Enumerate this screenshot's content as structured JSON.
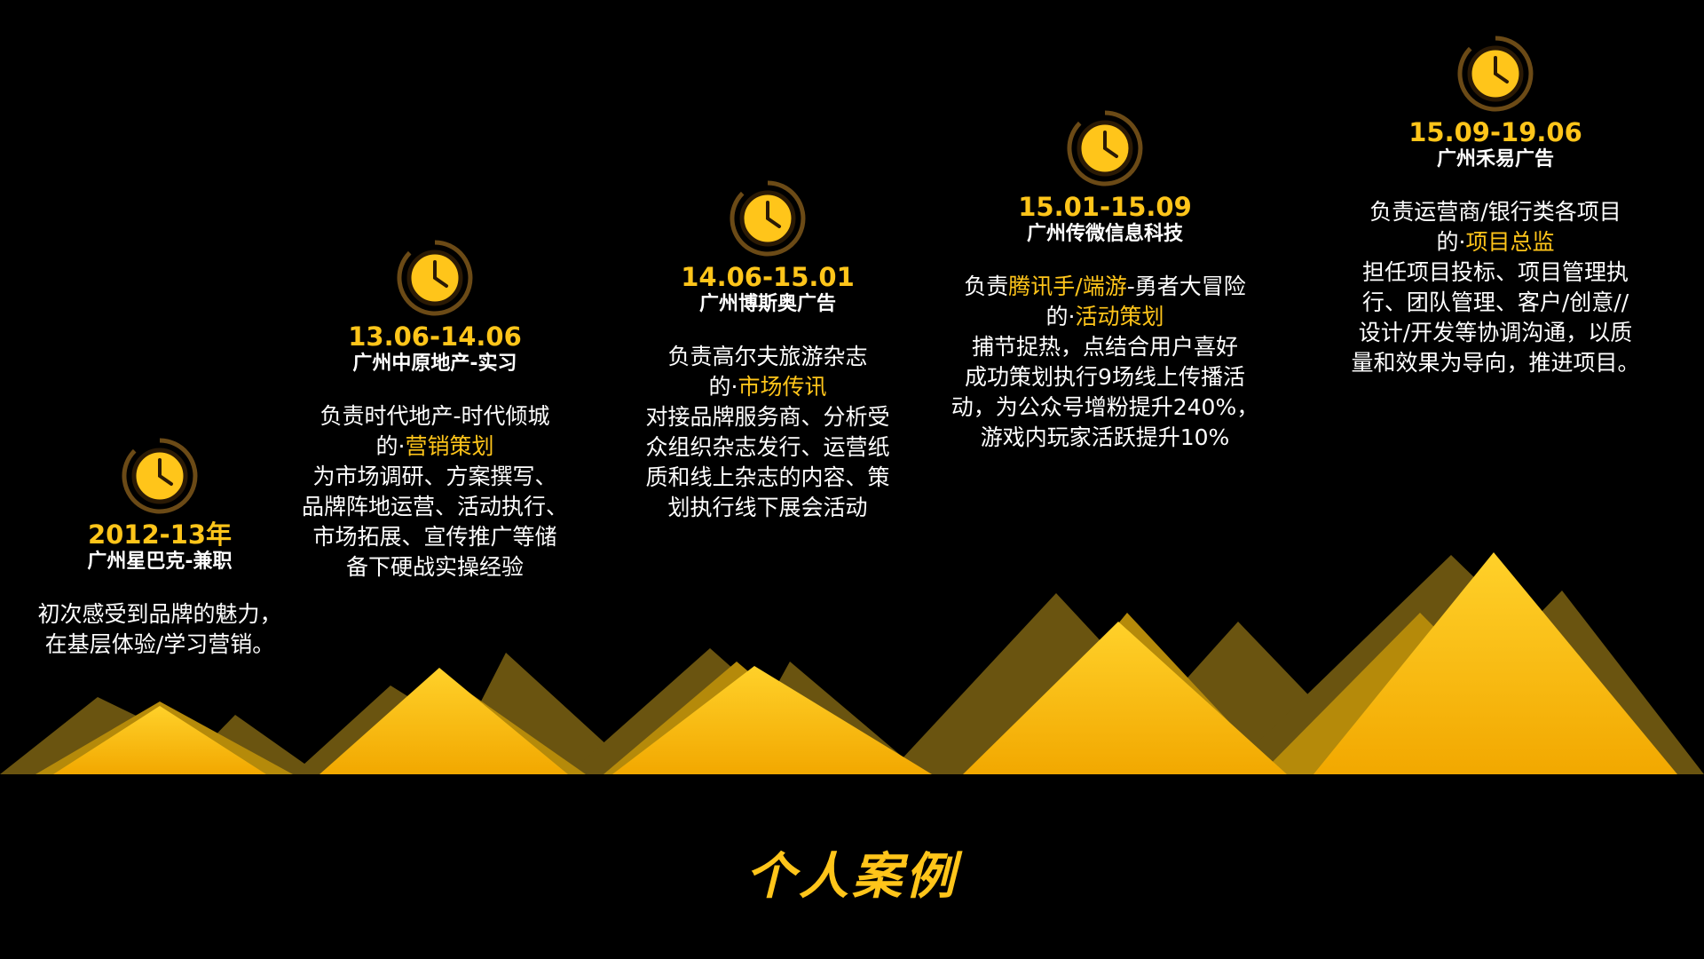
{
  "accent": "#ffc51a",
  "title": "个人案例",
  "entries": [
    {
      "date": "2012-13年",
      "company": "广州星巴克-兼职",
      "desc": [
        "初次感受到品牌的魅力，",
        "在基层体验/学习营销。"
      ]
    },
    {
      "date": "13.06-14.06",
      "company": "广州中原地产-实习",
      "line1": "负责时代地产-时代倾城",
      "line2_pre": "的·",
      "line2_hl": "营销策划",
      "rest": [
        "为市场调研、方案撰写、",
        "品牌阵地运营、活动执行、",
        "市场拓展、宣传推广等储",
        "备下硬战实操经验"
      ]
    },
    {
      "date": "14.06-15.01",
      "company": "广州博斯奥广告",
      "line1": "负责高尔夫旅游杂志",
      "line2_pre": "的·",
      "line2_hl": "市场传讯",
      "rest": [
        "对接品牌服务商、分析受",
        "众组织杂志发行、运营纸",
        "质和线上杂志的内容、策",
        "划执行线下展会活动"
      ]
    },
    {
      "date": "15.01-15.09",
      "company": "广州传微信息科技",
      "line1_pre": "负责",
      "line1_hl": "腾讯手/端游",
      "line1_post": "-勇者大冒险",
      "line2_pre": "的·",
      "line2_hl": "活动策划",
      "rest": [
        "捕节捉热，点结合用户喜好",
        "成功策划执行9场线上传播活",
        "动，为公众号增粉提升240%，",
        "游戏内玩家活跃提升10%"
      ]
    },
    {
      "date": "15.09-19.06",
      "company": "广州禾易广告",
      "line1": "负责运营商/银行类各项目",
      "line2_pre": "的·",
      "line2_hl": "项目总监",
      "rest": [
        "担任项目投标、项目管理执",
        "行、团队管理、客户/创意//",
        "设计/开发等协调沟通，以质",
        "量和效果为导向，推进项目。"
      ]
    }
  ]
}
